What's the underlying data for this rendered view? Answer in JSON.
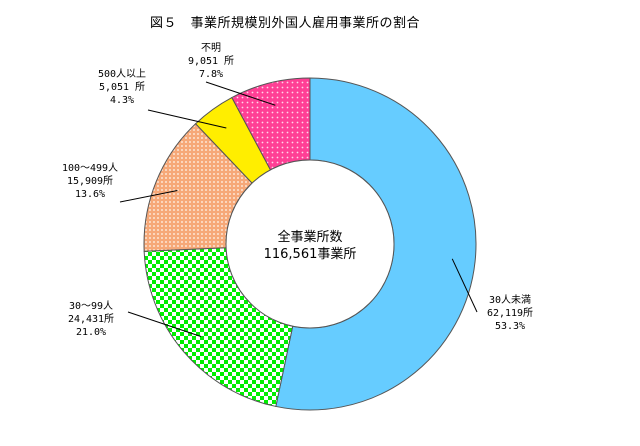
{
  "chart_data": {
    "type": "pie",
    "title": "図５　事業所規模別外国人雇用事業所の割合",
    "center_label": "全事業所数",
    "center_value": "116,561事業所",
    "slices": [
      {
        "name": "30人未満",
        "count": "62,119所",
        "percent_label": "53.3%",
        "value": 53.3,
        "color": "#66ccff",
        "pattern": "solid"
      },
      {
        "name": "30～99人",
        "count": "24,431所",
        "percent_label": "21.0%",
        "value": 21.0,
        "color": "#00ee00",
        "pattern": "checker"
      },
      {
        "name": "100～499人",
        "count": "15,909所",
        "percent_label": "13.6%",
        "value": 13.6,
        "color": "#f8b888",
        "pattern": "dots"
      },
      {
        "name": "500人以上",
        "count": "5,051 所",
        "percent_label": "4.3%",
        "value": 4.3,
        "color": "#ffee00",
        "pattern": "solid"
      },
      {
        "name": "不明",
        "count": "9,051 所",
        "percent_label": "7.8%",
        "value": 7.8,
        "color": "#ff4499",
        "pattern": "dots"
      }
    ]
  }
}
